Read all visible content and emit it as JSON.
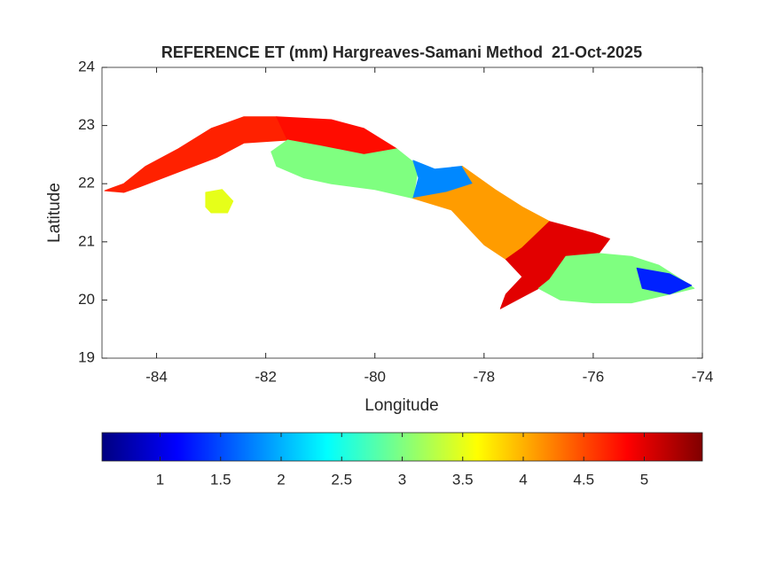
{
  "chart_data": {
    "type": "map",
    "title": "REFERENCE ET (mm) Hargreaves-Samani Method  21-Oct-2025",
    "xlabel": "Longitude",
    "ylabel": "Latitude",
    "xlim": [
      -85,
      -74
    ],
    "ylim": [
      19,
      24
    ],
    "xticks": [
      -84,
      -82,
      -80,
      -78,
      -76,
      -74
    ],
    "yticks": [
      19,
      20,
      21,
      22,
      23,
      24
    ],
    "colormap": "jet",
    "colorbar": {
      "clim": [
        0.52,
        5.48
      ],
      "ticks": [
        1,
        1.5,
        2,
        2.5,
        3,
        3.5,
        4,
        4.5,
        5
      ]
    },
    "regions": [
      {
        "value": 4.7,
        "lon": [
          -84.95,
          -84.6,
          -84.2,
          -83.6,
          -83.0,
          -82.4,
          -81.8,
          -81.6,
          -82.4,
          -82.9,
          -83.6,
          -84.3,
          -84.6
        ],
        "lat": [
          21.88,
          22.0,
          22.3,
          22.6,
          22.95,
          23.15,
          23.15,
          22.75,
          22.7,
          22.45,
          22.2,
          21.95,
          21.85
        ]
      },
      {
        "value": 4.8,
        "lon": [
          -81.8,
          -80.8,
          -80.2,
          -79.6,
          -80.2,
          -81.0,
          -81.6
        ],
        "lat": [
          23.15,
          23.1,
          22.95,
          22.6,
          22.5,
          22.65,
          22.75
        ]
      },
      {
        "value": 3.0,
        "lon": [
          -81.6,
          -81.0,
          -80.2,
          -79.6,
          -79.2,
          -79.3,
          -80.0,
          -80.8,
          -81.3,
          -81.8,
          -81.9
        ],
        "lat": [
          22.75,
          22.65,
          22.5,
          22.6,
          22.3,
          21.75,
          21.9,
          22.0,
          22.1,
          22.3,
          22.55
        ]
      },
      {
        "value": 1.8,
        "lon": [
          -79.3,
          -78.9,
          -78.4,
          -78.2,
          -78.7,
          -79.3,
          -79.2
        ],
        "lat": [
          22.4,
          22.25,
          22.3,
          22.0,
          21.85,
          21.75,
          22.1
        ]
      },
      {
        "value": 4.1,
        "lon": [
          -78.4,
          -77.8,
          -77.3,
          -76.8,
          -77.3,
          -77.6,
          -78.0,
          -78.6,
          -79.3,
          -78.7,
          -78.2
        ],
        "lat": [
          22.3,
          21.9,
          21.6,
          21.35,
          20.9,
          20.7,
          20.95,
          21.55,
          21.75,
          21.85,
          22.0
        ]
      },
      {
        "value": 5.0,
        "lon": [
          -76.8,
          -76.0,
          -75.7,
          -75.9,
          -76.5,
          -76.8,
          -77.0,
          -77.3,
          -77.7,
          -77.6,
          -77.3,
          -77.6,
          -77.3
        ],
        "lat": [
          21.35,
          21.15,
          21.05,
          20.8,
          20.75,
          20.35,
          20.2,
          20.05,
          19.85,
          20.1,
          20.4,
          20.7,
          20.9
        ]
      },
      {
        "value": 3.0,
        "lon": [
          -76.5,
          -75.9,
          -75.3,
          -74.8,
          -74.3,
          -74.15,
          -74.6,
          -75.3,
          -76.0,
          -76.6,
          -77.0,
          -76.8
        ],
        "lat": [
          20.75,
          20.8,
          20.75,
          20.6,
          20.3,
          20.2,
          20.1,
          19.95,
          19.95,
          20.0,
          20.2,
          20.35
        ]
      },
      {
        "value": 1.3,
        "lon": [
          -75.2,
          -74.6,
          -74.2,
          -74.6,
          -75.1
        ],
        "lat": [
          20.55,
          20.45,
          20.25,
          20.1,
          20.2
        ]
      },
      {
        "value": 3.5,
        "lon": [
          -83.1,
          -82.8,
          -82.6,
          -82.7,
          -83.0,
          -83.1
        ],
        "lat": [
          21.85,
          21.9,
          21.7,
          21.5,
          21.5,
          21.6
        ]
      }
    ]
  }
}
